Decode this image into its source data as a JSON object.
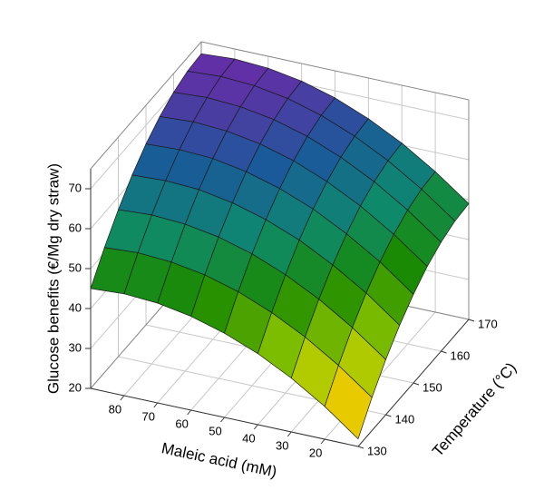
{
  "chart_data": {
    "type": "surface",
    "xlabel": "Maleic acid (mM)",
    "ylabel": "Temperature (°C)",
    "zlabel": "Glucose benefits (€/Mg dry straw)",
    "x": [
      10,
      20,
      30,
      40,
      50,
      60,
      70,
      80,
      90
    ],
    "y": [
      130,
      135,
      140,
      145,
      150,
      155,
      160,
      165,
      170
    ],
    "z": [
      [
        21.9,
        28.2,
        33.5,
        37.8,
        41.1,
        43.5,
        45.0,
        45.5,
        45.0
      ],
      [
        28.3,
        34.5,
        39.8,
        44.1,
        47.5,
        49.9,
        51.3,
        51.8,
        51.3
      ],
      [
        33.8,
        40.0,
        45.3,
        49.6,
        53.0,
        55.4,
        56.8,
        57.3,
        56.8
      ],
      [
        38.4,
        44.7,
        49.9,
        54.3,
        57.6,
        60.0,
        61.5,
        61.9,
        61.5
      ],
      [
        42.2,
        48.5,
        53.7,
        58.1,
        61.4,
        63.8,
        65.3,
        65.7,
        65.3
      ],
      [
        45.2,
        51.4,
        56.7,
        61.0,
        64.4,
        66.8,
        68.2,
        68.7,
        68.2
      ],
      [
        47.3,
        53.5,
        58.8,
        63.1,
        66.5,
        68.9,
        70.3,
        70.8,
        70.3
      ],
      [
        48.6,
        54.8,
        60.1,
        64.4,
        67.8,
        70.2,
        71.6,
        72.1,
        71.6
      ],
      [
        49.0,
        55.2,
        60.5,
        64.8,
        68.2,
        70.6,
        72.0,
        72.5,
        72.0
      ]
    ],
    "xlim": [
      10,
      90
    ],
    "ylim": [
      130,
      170
    ],
    "zlim": [
      20,
      75
    ],
    "xticks": [
      20,
      30,
      40,
      50,
      60,
      70,
      80
    ],
    "yticks": [
      130,
      140,
      150,
      160,
      170
    ],
    "zticks": [
      20,
      30,
      40,
      50,
      60,
      70
    ],
    "grid": true,
    "colormap": [
      "#ff4a00",
      "#e6d400",
      "#8cc400",
      "#1a8a00",
      "#0e8a6e",
      "#1a5a9a",
      "#6a2aa8"
    ]
  }
}
